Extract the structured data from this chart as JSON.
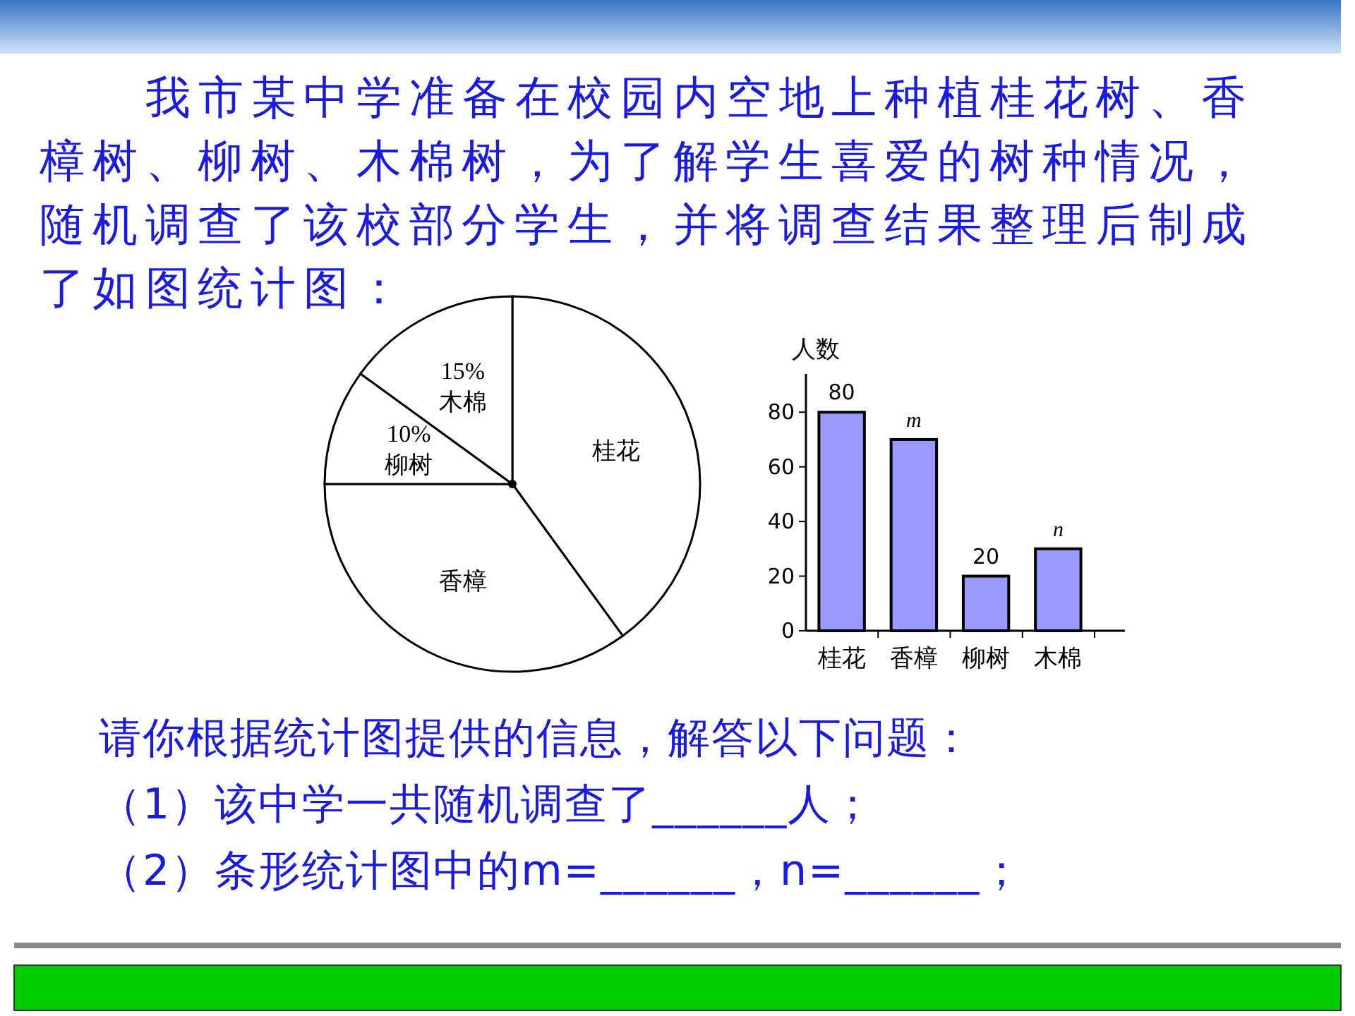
{
  "chart_data": [
    {
      "type": "pie",
      "title": "我市某中学准备在校园内空地上种植桂花树、香樟树、柳树、木棉树，为了解学生喜爱的树种情况，随机调查了该校部分学生，并将调查结果整理后制成了如图统计图：",
      "categories": [
        "桂花",
        "香樟",
        "柳树",
        "木棉"
      ],
      "values": [
        40,
        35,
        10,
        15
      ],
      "colors": [
        "#ffffff",
        "#ffffff",
        "#ffffff",
        "#ffffff"
      ],
      "value_labels": [
        null,
        null,
        "10%",
        "15%"
      ],
      "annotations": [
        "请你根据统计图提供的信息，解答以下问题：",
        "（1）该中学一共随机调查了______人；",
        "（2）条形统计图中的m=______，n=______；"
      ]
    },
    {
      "type": "bar",
      "ylabel": "人数",
      "categories": [
        "桂花",
        "香樟",
        "柳树",
        "木棉"
      ],
      "values": [
        80,
        70,
        20,
        30
      ],
      "color": "#9999ff",
      "value_labels": [
        "80",
        "m",
        "20",
        "n"
      ],
      "ylim": [
        0,
        94
      ],
      "yticks": [
        0,
        20,
        40,
        60,
        80
      ]
    }
  ]
}
